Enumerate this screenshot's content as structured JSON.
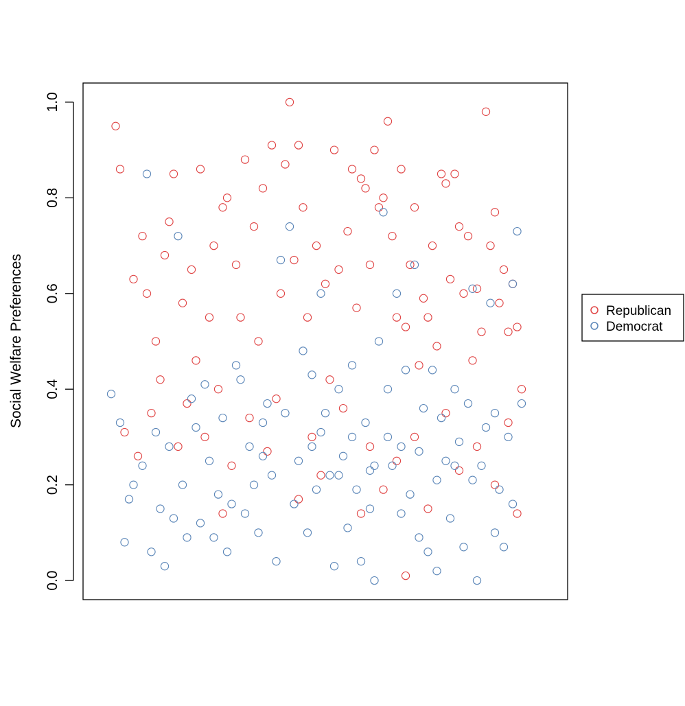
{
  "chart_data": {
    "type": "scatter",
    "title": "",
    "xlabel": "",
    "ylabel": "Social Welfare Preferences",
    "ylim": [
      -0.04,
      1.04
    ],
    "yticks": [
      "0.0",
      "0.2",
      "0.4",
      "0.6",
      "0.8",
      "1.0"
    ],
    "x_axis_shown": false,
    "grid": false,
    "legend_position": "right",
    "colors": {
      "Republican": "#e04545",
      "Democrat": "#5b86b8"
    },
    "series": [
      {
        "name": "Republican",
        "points": [
          [
            0.03,
            0.95
          ],
          [
            0.04,
            0.86
          ],
          [
            0.07,
            0.63
          ],
          [
            0.09,
            0.72
          ],
          [
            0.1,
            0.6
          ],
          [
            0.12,
            0.5
          ],
          [
            0.14,
            0.68
          ],
          [
            0.15,
            0.75
          ],
          [
            0.16,
            0.85
          ],
          [
            0.18,
            0.58
          ],
          [
            0.2,
            0.65
          ],
          [
            0.21,
            0.46
          ],
          [
            0.22,
            0.86
          ],
          [
            0.24,
            0.55
          ],
          [
            0.25,
            0.7
          ],
          [
            0.27,
            0.78
          ],
          [
            0.28,
            0.8
          ],
          [
            0.3,
            0.66
          ],
          [
            0.31,
            0.55
          ],
          [
            0.32,
            0.88
          ],
          [
            0.34,
            0.74
          ],
          [
            0.35,
            0.5
          ],
          [
            0.36,
            0.82
          ],
          [
            0.38,
            0.91
          ],
          [
            0.4,
            0.6
          ],
          [
            0.41,
            0.87
          ],
          [
            0.42,
            1.0
          ],
          [
            0.43,
            0.67
          ],
          [
            0.44,
            0.91
          ],
          [
            0.45,
            0.78
          ],
          [
            0.46,
            0.55
          ],
          [
            0.48,
            0.7
          ],
          [
            0.5,
            0.62
          ],
          [
            0.51,
            0.42
          ],
          [
            0.52,
            0.9
          ],
          [
            0.53,
            0.65
          ],
          [
            0.55,
            0.73
          ],
          [
            0.56,
            0.86
          ],
          [
            0.57,
            0.57
          ],
          [
            0.58,
            0.84
          ],
          [
            0.59,
            0.82
          ],
          [
            0.6,
            0.66
          ],
          [
            0.61,
            0.9
          ],
          [
            0.62,
            0.78
          ],
          [
            0.63,
            0.8
          ],
          [
            0.64,
            0.96
          ],
          [
            0.65,
            0.72
          ],
          [
            0.66,
            0.55
          ],
          [
            0.67,
            0.86
          ],
          [
            0.68,
            0.53
          ],
          [
            0.69,
            0.66
          ],
          [
            0.7,
            0.78
          ],
          [
            0.71,
            0.45
          ],
          [
            0.72,
            0.59
          ],
          [
            0.73,
            0.55
          ],
          [
            0.74,
            0.7
          ],
          [
            0.75,
            0.49
          ],
          [
            0.76,
            0.85
          ],
          [
            0.77,
            0.83
          ],
          [
            0.78,
            0.63
          ],
          [
            0.79,
            0.85
          ],
          [
            0.8,
            0.74
          ],
          [
            0.81,
            0.6
          ],
          [
            0.82,
            0.72
          ],
          [
            0.83,
            0.46
          ],
          [
            0.84,
            0.61
          ],
          [
            0.85,
            0.52
          ],
          [
            0.86,
            0.98
          ],
          [
            0.87,
            0.7
          ],
          [
            0.88,
            0.77
          ],
          [
            0.89,
            0.58
          ],
          [
            0.9,
            0.65
          ],
          [
            0.91,
            0.52
          ],
          [
            0.92,
            0.62
          ],
          [
            0.93,
            0.53
          ],
          [
            0.94,
            0.4
          ],
          [
            0.05,
            0.31
          ],
          [
            0.08,
            0.26
          ],
          [
            0.11,
            0.35
          ],
          [
            0.13,
            0.42
          ],
          [
            0.17,
            0.28
          ],
          [
            0.19,
            0.37
          ],
          [
            0.23,
            0.3
          ],
          [
            0.26,
            0.4
          ],
          [
            0.29,
            0.24
          ],
          [
            0.33,
            0.34
          ],
          [
            0.37,
            0.27
          ],
          [
            0.39,
            0.38
          ],
          [
            0.47,
            0.3
          ],
          [
            0.49,
            0.22
          ],
          [
            0.54,
            0.36
          ],
          [
            0.6,
            0.28
          ],
          [
            0.63,
            0.19
          ],
          [
            0.66,
            0.25
          ],
          [
            0.7,
            0.3
          ],
          [
            0.73,
            0.15
          ],
          [
            0.77,
            0.35
          ],
          [
            0.8,
            0.23
          ],
          [
            0.84,
            0.28
          ],
          [
            0.88,
            0.2
          ],
          [
            0.91,
            0.33
          ],
          [
            0.93,
            0.14
          ],
          [
            0.68,
            0.01
          ],
          [
            0.58,
            0.14
          ],
          [
            0.44,
            0.17
          ],
          [
            0.27,
            0.14
          ]
        ]
      },
      {
        "name": "Democrat",
        "points": [
          [
            0.02,
            0.39
          ],
          [
            0.04,
            0.33
          ],
          [
            0.05,
            0.08
          ],
          [
            0.07,
            0.2
          ],
          [
            0.09,
            0.24
          ],
          [
            0.1,
            0.85
          ],
          [
            0.11,
            0.06
          ],
          [
            0.13,
            0.15
          ],
          [
            0.14,
            0.03
          ],
          [
            0.15,
            0.28
          ],
          [
            0.17,
            0.72
          ],
          [
            0.18,
            0.2
          ],
          [
            0.2,
            0.38
          ],
          [
            0.22,
            0.12
          ],
          [
            0.24,
            0.25
          ],
          [
            0.26,
            0.18
          ],
          [
            0.28,
            0.06
          ],
          [
            0.3,
            0.45
          ],
          [
            0.32,
            0.14
          ],
          [
            0.33,
            0.28
          ],
          [
            0.35,
            0.1
          ],
          [
            0.36,
            0.33
          ],
          [
            0.38,
            0.22
          ],
          [
            0.39,
            0.04
          ],
          [
            0.4,
            0.67
          ],
          [
            0.41,
            0.35
          ],
          [
            0.42,
            0.74
          ],
          [
            0.43,
            0.16
          ],
          [
            0.45,
            0.48
          ],
          [
            0.46,
            0.1
          ],
          [
            0.47,
            0.28
          ],
          [
            0.48,
            0.19
          ],
          [
            0.49,
            0.6
          ],
          [
            0.5,
            0.35
          ],
          [
            0.51,
            0.22
          ],
          [
            0.52,
            0.03
          ],
          [
            0.53,
            0.4
          ],
          [
            0.54,
            0.26
          ],
          [
            0.55,
            0.11
          ],
          [
            0.56,
            0.3
          ],
          [
            0.57,
            0.19
          ],
          [
            0.58,
            0.04
          ],
          [
            0.59,
            0.33
          ],
          [
            0.6,
            0.23
          ],
          [
            0.61,
            0.0
          ],
          [
            0.62,
            0.5
          ],
          [
            0.63,
            0.77
          ],
          [
            0.64,
            0.3
          ],
          [
            0.65,
            0.24
          ],
          [
            0.66,
            0.6
          ],
          [
            0.67,
            0.14
          ],
          [
            0.68,
            0.44
          ],
          [
            0.69,
            0.18
          ],
          [
            0.7,
            0.66
          ],
          [
            0.71,
            0.27
          ],
          [
            0.72,
            0.36
          ],
          [
            0.73,
            0.06
          ],
          [
            0.74,
            0.44
          ],
          [
            0.75,
            0.02
          ],
          [
            0.76,
            0.34
          ],
          [
            0.77,
            0.25
          ],
          [
            0.78,
            0.13
          ],
          [
            0.79,
            0.4
          ],
          [
            0.8,
            0.29
          ],
          [
            0.81,
            0.07
          ],
          [
            0.82,
            0.37
          ],
          [
            0.83,
            0.21
          ],
          [
            0.84,
            0.0
          ],
          [
            0.85,
            0.24
          ],
          [
            0.86,
            0.32
          ],
          [
            0.87,
            0.58
          ],
          [
            0.88,
            0.1
          ],
          [
            0.89,
            0.19
          ],
          [
            0.9,
            0.07
          ],
          [
            0.91,
            0.3
          ],
          [
            0.92,
            0.16
          ],
          [
            0.93,
            0.73
          ],
          [
            0.94,
            0.37
          ],
          [
            0.06,
            0.17
          ],
          [
            0.12,
            0.31
          ],
          [
            0.16,
            0.13
          ],
          [
            0.19,
            0.09
          ],
          [
            0.21,
            0.32
          ],
          [
            0.23,
            0.41
          ],
          [
            0.25,
            0.09
          ],
          [
            0.27,
            0.34
          ],
          [
            0.29,
            0.16
          ],
          [
            0.31,
            0.42
          ],
          [
            0.34,
            0.2
          ],
          [
            0.37,
            0.37
          ],
          [
            0.44,
            0.25
          ],
          [
            0.47,
            0.43
          ],
          [
            0.53,
            0.22
          ],
          [
            0.56,
            0.45
          ],
          [
            0.6,
            0.15
          ],
          [
            0.64,
            0.4
          ],
          [
            0.67,
            0.28
          ],
          [
            0.71,
            0.09
          ],
          [
            0.75,
            0.21
          ],
          [
            0.79,
            0.24
          ],
          [
            0.83,
            0.61
          ],
          [
            0.88,
            0.35
          ],
          [
            0.92,
            0.62
          ],
          [
            0.61,
            0.24
          ],
          [
            0.49,
            0.31
          ],
          [
            0.36,
            0.26
          ]
        ]
      }
    ]
  }
}
